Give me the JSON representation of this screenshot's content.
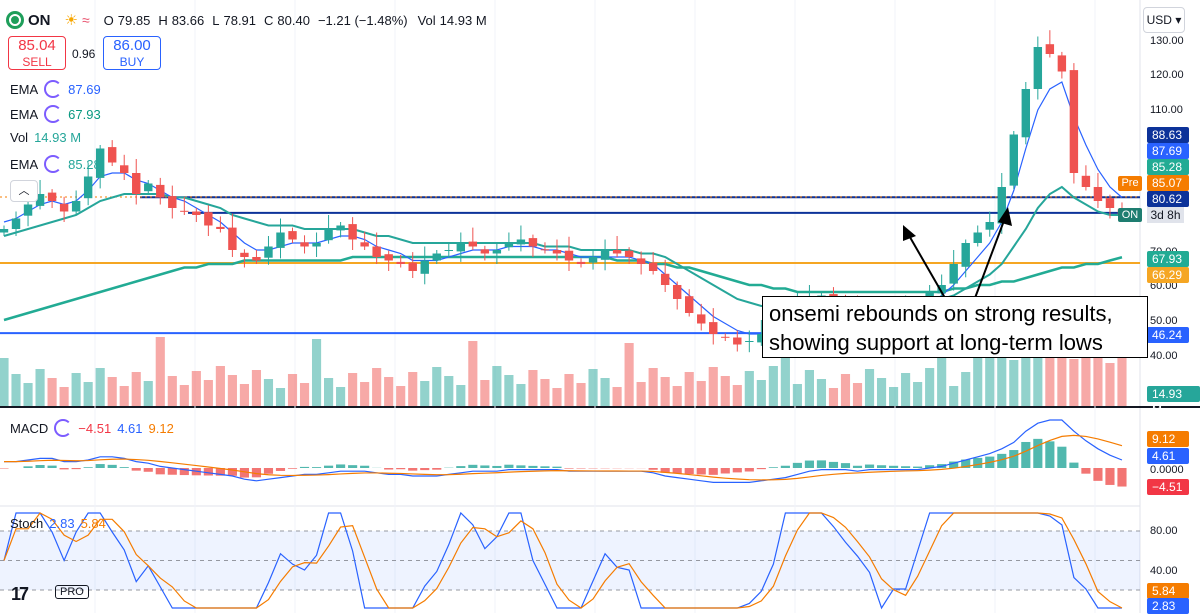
{
  "header": {
    "symbol": "ON",
    "open_label": "O",
    "open": "79.85",
    "high_label": "H",
    "high": "83.66",
    "low_label": "L",
    "low": "78.91",
    "close_label": "C",
    "close": "80.40",
    "change": "−1.21 (−1.48%)",
    "vol_label": "Vol",
    "vol": "14.93 M"
  },
  "trade": {
    "sell_price": "85.04",
    "sell_label": "SELL",
    "spread": "0.96",
    "buy_price": "86.00",
    "buy_label": "BUY"
  },
  "indicators": [
    {
      "name": "EMA",
      "value": "87.69",
      "color": "#2962ff"
    },
    {
      "name": "EMA",
      "value": "67.93",
      "color": "#089981"
    },
    {
      "name": "Vol",
      "value": "14.93 M",
      "color": "#26a69a"
    },
    {
      "name": "EMA",
      "value": "85.28",
      "color": "#26a69a"
    }
  ],
  "currency": "USD",
  "price_axis": [
    "130.00",
    "120.00",
    "110.00",
    "70.00",
    "60.00",
    "50.00",
    "40.00"
  ],
  "price_tags": [
    {
      "text": "88.63",
      "bg": "#0c3299"
    },
    {
      "text": "87.69",
      "bg": "#2962ff"
    },
    {
      "text": "85.28",
      "bg": "#22ab94"
    },
    {
      "text": "85.07",
      "bg": "#f57c00"
    },
    {
      "text": "80.62",
      "bg": "#0c3299"
    },
    {
      "text": "67.93",
      "bg": "#22ab94"
    },
    {
      "text": "66.29",
      "bg": "#f5a623"
    },
    {
      "text": "46.24",
      "bg": "#2962ff"
    },
    {
      "text": "14.93 M",
      "bg": "#26a69a"
    }
  ],
  "pre_label": "Pre",
  "on_label": "ON",
  "countdown": "3d 8h",
  "annotation": {
    "line1": "onsemi rebounds on strong results,",
    "line2": "showing support at long-term lows"
  },
  "macd": {
    "label": "MACD",
    "hist_value": "−4.51",
    "macd_value": "4.61",
    "signal_value": "9.12",
    "axis_tags": [
      {
        "text": "9.12",
        "bg": "#f57c00"
      },
      {
        "text": "4.61",
        "bg": "#2962ff"
      },
      {
        "text": "−4.51",
        "bg": "#f23645"
      }
    ],
    "zero_label": "0.0000"
  },
  "stoch": {
    "label": "Stoch",
    "k_value": "2.83",
    "d_value": "5.84",
    "axis_labels": [
      "80.00",
      "40.00"
    ],
    "axis_tags": [
      {
        "text": "5.84",
        "bg": "#f57c00"
      },
      {
        "text": "2.83",
        "bg": "#2962ff"
      }
    ]
  },
  "branding": {
    "logo": "17",
    "pro": "PRO"
  },
  "chart_data": {
    "type": "candlestick",
    "series_colors": {
      "up": "#26a69a",
      "down": "#ef5350",
      "ema_fast": "#2962ff",
      "ema_mid": "#22ab94",
      "ema_slow": "#26a69a"
    },
    "ylim": [
      40,
      135
    ],
    "horizontal_lines": [
      {
        "price": 85.07,
        "color": "#0c3299"
      },
      {
        "price": 80.62,
        "color": "#0c3299"
      },
      {
        "price": 66.29,
        "color": "#f5a623"
      },
      {
        "price": 46.24,
        "color": "#2962ff"
      }
    ],
    "price_path": [
      76,
      79,
      83,
      86,
      84,
      81,
      84,
      91,
      99,
      95,
      92,
      86,
      89,
      85,
      82,
      81,
      80,
      77,
      76,
      70,
      68,
      67,
      71,
      75,
      73,
      71,
      72,
      76,
      77,
      73,
      71,
      68,
      67,
      66,
      64,
      67,
      69,
      70,
      72,
      71,
      69,
      70,
      72,
      73,
      71,
      70,
      69,
      67,
      66,
      68,
      70,
      69,
      68,
      66,
      64,
      60,
      56,
      52,
      49,
      46,
      45,
      43,
      44,
      46,
      49,
      52,
      55,
      56,
      57,
      55,
      53,
      52,
      52,
      52,
      53,
      53,
      55,
      58,
      60,
      66,
      72,
      75,
      78,
      88,
      103,
      116,
      128,
      126,
      121,
      92,
      88,
      84,
      82,
      80
    ],
    "ema_fast": [
      78,
      79,
      81,
      83,
      84,
      83,
      84,
      87,
      91,
      92,
      92,
      90,
      89,
      87,
      85,
      84,
      82,
      80,
      78,
      75,
      72,
      70,
      70,
      71,
      72,
      72,
      72,
      73,
      74,
      74,
      73,
      71,
      70,
      69,
      67,
      67,
      67,
      68,
      69,
      70,
      70,
      70,
      71,
      71,
      71,
      70,
      70,
      69,
      68,
      68,
      68,
      68,
      68,
      67,
      66,
      63,
      60,
      57,
      54,
      51,
      49,
      47,
      46,
      46,
      47,
      48,
      50,
      52,
      54,
      54,
      54,
      53,
      53,
      53,
      53,
      53,
      54,
      55,
      57,
      60,
      64,
      68,
      72,
      78,
      87,
      99,
      110,
      116,
      118,
      108,
      100,
      93,
      88,
      85
    ],
    "ema_mid": [
      74,
      75,
      76,
      77,
      78,
      79,
      80,
      82,
      84,
      85,
      86,
      86,
      86,
      86,
      85,
      85,
      84,
      83,
      82,
      80,
      79,
      78,
      77,
      77,
      77,
      76,
      76,
      76,
      76,
      76,
      75,
      74,
      74,
      73,
      72,
      72,
      72,
      72,
      72,
      72,
      72,
      72,
      72,
      72,
      72,
      71,
      71,
      71,
      70,
      70,
      70,
      70,
      70,
      69,
      69,
      68,
      66,
      64,
      62,
      60,
      58,
      56,
      55,
      54,
      54,
      54,
      54,
      54,
      55,
      55,
      55,
      55,
      54,
      54,
      54,
      54,
      55,
      55,
      56,
      57,
      59,
      61,
      63,
      66,
      71,
      76,
      82,
      86,
      88,
      85,
      83,
      81,
      80,
      80
    ],
    "ema_slow": [
      50,
      51,
      52,
      53,
      54,
      55,
      56,
      57,
      58,
      59,
      60,
      61,
      62,
      63,
      64,
      65,
      65,
      66,
      66,
      66,
      67,
      67,
      67,
      67,
      67,
      67,
      67,
      67,
      67,
      68,
      68,
      68,
      68,
      68,
      68,
      68,
      68,
      68,
      68,
      68,
      68,
      68,
      68,
      68,
      68,
      68,
      68,
      68,
      68,
      68,
      68,
      67,
      67,
      67,
      66,
      66,
      65,
      65,
      64,
      63,
      62,
      61,
      60,
      60,
      59,
      59,
      58,
      58,
      58,
      58,
      58,
      58,
      58,
      58,
      58,
      58,
      58,
      58,
      58,
      59,
      59,
      60,
      60,
      61,
      61,
      62,
      63,
      64,
      65,
      65,
      66,
      66,
      67,
      67.93
    ]
  }
}
